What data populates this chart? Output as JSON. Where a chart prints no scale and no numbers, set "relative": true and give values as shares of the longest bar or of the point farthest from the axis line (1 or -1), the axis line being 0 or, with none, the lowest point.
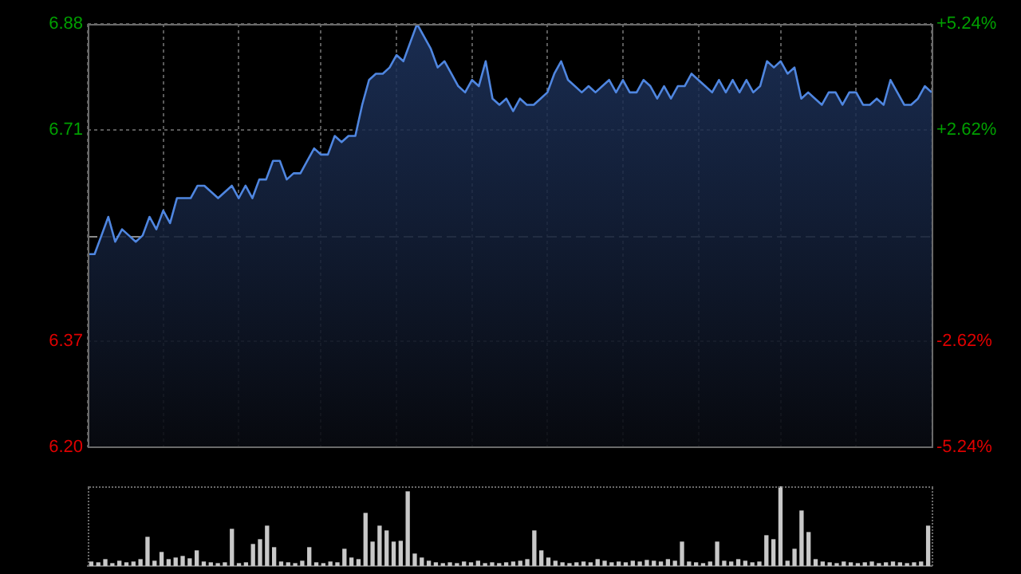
{
  "chart_data": [
    {
      "type": "area",
      "tick_labels": "y",
      "grid": true,
      "legend": false,
      "categories": [
        null,
        null,
        null,
        null,
        null,
        null,
        null,
        null,
        null,
        null,
        null,
        null,
        null,
        null,
        null,
        null,
        null,
        null,
        null,
        null,
        null,
        null,
        null,
        null,
        null,
        null,
        null,
        null,
        null,
        null,
        null,
        null,
        null,
        null,
        null,
        null,
        null,
        null,
        null,
        null,
        null,
        null,
        null,
        null,
        null,
        null,
        null,
        null,
        null,
        null,
        null,
        null,
        null,
        null,
        null,
        null,
        null,
        null,
        null,
        null,
        null,
        null,
        null,
        null,
        null,
        null,
        null,
        null,
        null,
        null,
        null,
        null,
        null,
        null,
        null,
        null,
        null,
        null,
        null,
        null,
        null,
        null,
        null,
        null,
        null,
        null,
        null,
        null,
        null,
        null,
        null,
        null,
        null,
        null,
        null,
        null,
        null,
        null,
        null,
        null,
        null,
        null,
        null,
        null,
        null,
        null,
        null,
        null,
        null,
        null,
        null,
        null,
        null,
        null,
        null,
        null,
        null,
        null,
        null,
        null,
        null,
        null,
        null,
        null
      ],
      "series": [
        {
          "color": "#4f86e0",
          "values": [
            6.51,
            6.51,
            6.54,
            6.57,
            6.53,
            6.55,
            6.54,
            6.53,
            6.54,
            6.57,
            6.55,
            6.58,
            6.56,
            6.6,
            6.6,
            6.6,
            6.62,
            6.62,
            6.61,
            6.6,
            6.61,
            6.62,
            6.6,
            6.62,
            6.6,
            6.63,
            6.63,
            6.66,
            6.66,
            6.63,
            6.64,
            6.64,
            6.66,
            6.68,
            6.67,
            6.67,
            6.7,
            6.69,
            6.7,
            6.7,
            6.75,
            6.79,
            6.8,
            6.8,
            6.81,
            6.83,
            6.82,
            6.85,
            6.88,
            6.86,
            6.84,
            6.81,
            6.82,
            6.8,
            6.78,
            6.77,
            6.79,
            6.78,
            6.82,
            6.76,
            6.75,
            6.76,
            6.74,
            6.76,
            6.75,
            6.75,
            6.76,
            6.77,
            6.8,
            6.82,
            6.79,
            6.78,
            6.77,
            6.78,
            6.77,
            6.78,
            6.79,
            6.77,
            6.79,
            6.77,
            6.77,
            6.79,
            6.78,
            6.76,
            6.78,
            6.76,
            6.78,
            6.78,
            6.8,
            6.79,
            6.78,
            6.77,
            6.79,
            6.77,
            6.79,
            6.77,
            6.79,
            6.77,
            6.78,
            6.82,
            6.81,
            6.82,
            6.8,
            6.81,
            6.76,
            6.77,
            6.76,
            6.75,
            6.77,
            6.77,
            6.75,
            6.77,
            6.77,
            6.75,
            6.75,
            6.76,
            6.75,
            6.79,
            6.77,
            6.75,
            6.75,
            6.76,
            6.78,
            6.77
          ]
        }
      ],
      "ylim": [
        6.2,
        6.88
      ],
      "yticks": [
        {
          "value": 6.2,
          "label": "6.20"
        },
        6.37,
        6.71,
        6.88
      ],
      "y2lim": [
        -5.24,
        5.24
      ],
      "y2ticks": [
        {
          "value": -5.24,
          "label": "-5.24%"
        },
        {
          "value": -2.62,
          "label": "-2.62%"
        },
        {
          "value": 2.62,
          "label": "+2.62%"
        },
        {
          "value": 5.24,
          "label": "+5.24%"
        }
      ],
      "ref_lines": [
        {
          "axis": "y",
          "value": 6.54,
          "color": "#8a8a8a",
          "line_style": "dashed"
        }
      ]
    },
    {
      "type": "bar",
      "relative": true,
      "legend": false,
      "categories": [
        null,
        null,
        null,
        null,
        null,
        null,
        null,
        null,
        null,
        null,
        null,
        null,
        null,
        null,
        null,
        null,
        null,
        null,
        null,
        null,
        null,
        null,
        null,
        null,
        null,
        null,
        null,
        null,
        null,
        null,
        null,
        null,
        null,
        null,
        null,
        null,
        null,
        null,
        null,
        null,
        null,
        null,
        null,
        null,
        null,
        null,
        null,
        null,
        null,
        null,
        null,
        null,
        null,
        null,
        null,
        null,
        null,
        null,
        null,
        null,
        null,
        null,
        null,
        null,
        null,
        null,
        null,
        null,
        null,
        null,
        null,
        null,
        null,
        null,
        null,
        null,
        null,
        null,
        null,
        null,
        null,
        null,
        null,
        null,
        null,
        null,
        null,
        null,
        null,
        null,
        null,
        null,
        null,
        null,
        null,
        null,
        null,
        null,
        null,
        null,
        null,
        null,
        null,
        null,
        null,
        null,
        null,
        null,
        null,
        null,
        null,
        null,
        null,
        null,
        null,
        null,
        null,
        null,
        null,
        null
      ],
      "color": "#c8c8c8",
      "values": [
        0.05,
        0.04,
        0.08,
        0.03,
        0.06,
        0.04,
        0.05,
        0.08,
        0.36,
        0.06,
        0.17,
        0.08,
        0.1,
        0.12,
        0.09,
        0.19,
        0.05,
        0.04,
        0.03,
        0.04,
        0.46,
        0.03,
        0.04,
        0.27,
        0.33,
        0.5,
        0.23,
        0.05,
        0.04,
        0.03,
        0.06,
        0.23,
        0.04,
        0.03,
        0.05,
        0.04,
        0.21,
        0.1,
        0.08,
        0.66,
        0.3,
        0.5,
        0.44,
        0.3,
        0.31,
        0.93,
        0.15,
        0.1,
        0.06,
        0.04,
        0.03,
        0.04,
        0.03,
        0.05,
        0.04,
        0.06,
        0.03,
        0.04,
        0.03,
        0.04,
        0.05,
        0.06,
        0.08,
        0.44,
        0.19,
        0.1,
        0.06,
        0.04,
        0.03,
        0.04,
        0.05,
        0.04,
        0.08,
        0.06,
        0.04,
        0.05,
        0.04,
        0.06,
        0.05,
        0.07,
        0.06,
        0.05,
        0.08,
        0.06,
        0.3,
        0.05,
        0.04,
        0.03,
        0.05,
        0.3,
        0.06,
        0.05,
        0.08,
        0.06,
        0.04,
        0.05,
        0.38,
        0.33,
        1,
        0.06,
        0.21,
        0.69,
        0.42,
        0.08,
        0.05,
        0.04,
        0.03,
        0.05,
        0.04,
        0.03,
        0.04,
        0.05,
        0.03,
        0.04,
        0.05,
        0.04,
        0.03,
        0.04,
        0.05,
        0.5
      ]
    }
  ]
}
